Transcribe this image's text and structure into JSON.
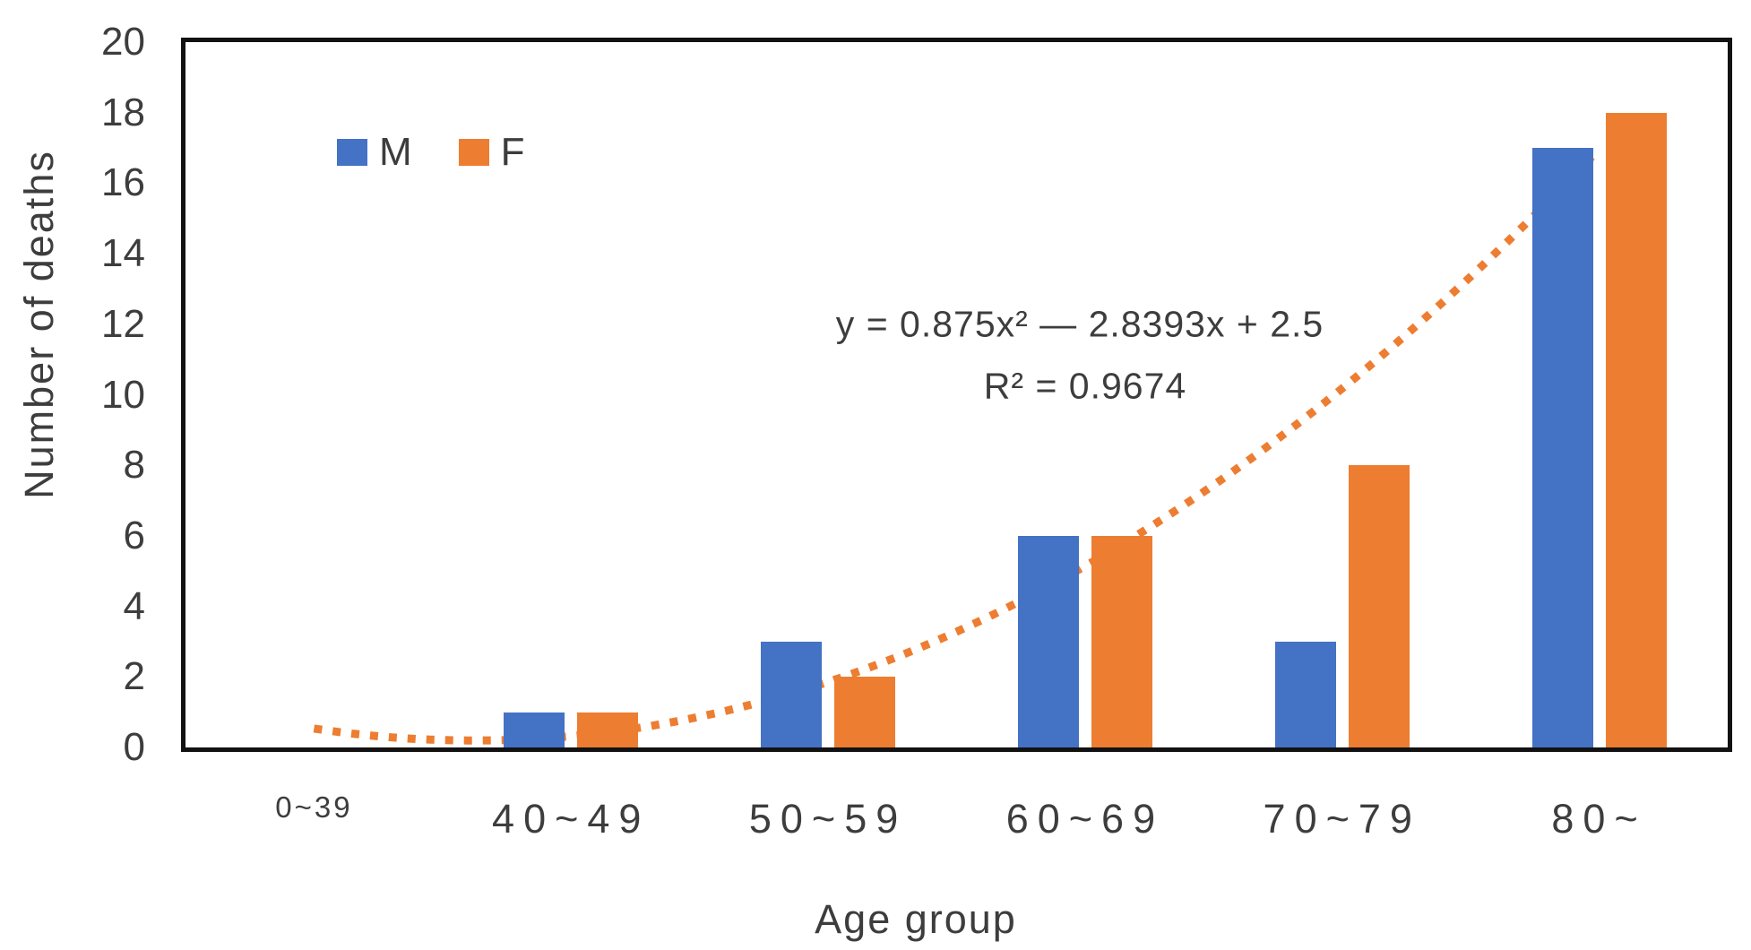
{
  "chart_data": {
    "type": "bar",
    "title": "",
    "categories": [
      "0~39",
      "40~49",
      "50~59",
      "60~69",
      "70~79",
      "80~"
    ],
    "series": [
      {
        "name": "M",
        "color": "#4472C4",
        "values": [
          0,
          1,
          3,
          6,
          3,
          17
        ]
      },
      {
        "name": "F",
        "color": "#ED7D31",
        "values": [
          0,
          1,
          2,
          6,
          8,
          18
        ]
      }
    ],
    "xlabel": "Age group",
    "ylabel": "Number of deaths",
    "ylim": [
      0,
      20
    ],
    "yticks": [
      0,
      2,
      4,
      6,
      8,
      10,
      12,
      14,
      16,
      18,
      20
    ],
    "grid": false,
    "legend_position": "top-left-inside",
    "trendline": {
      "style": "dotted",
      "color": "#ED7D31",
      "equation_coefficients": {
        "a": 0.875,
        "b": -2.8393,
        "c": 2.5
      },
      "x_domain_categories": [
        1,
        6
      ],
      "label": "y = 0.875x² — 2.8393x + 2.5",
      "r_squared_label": "R² = 0.9674"
    }
  },
  "colors": {
    "bar_m": "#4472C4",
    "bar_f": "#ED7D31",
    "trendline": "#ED7D31",
    "text": "#3d3d3d",
    "frame": "#121212"
  }
}
